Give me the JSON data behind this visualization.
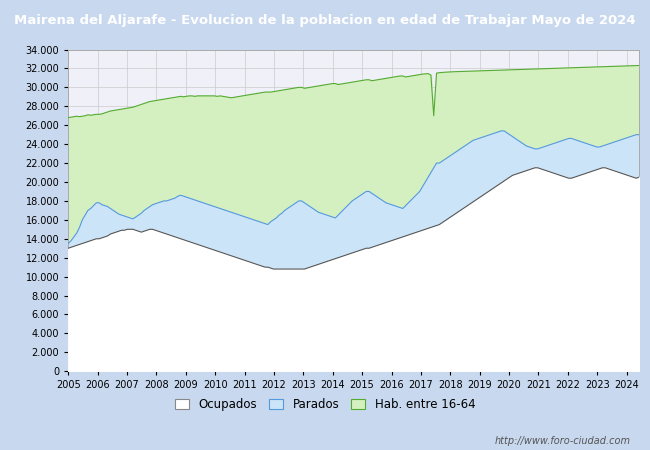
{
  "title": "Mairena del Aljarafe - Evolucion de la poblacion en edad de Trabajar Mayo de 2024",
  "title_bg": "#4080cc",
  "title_color": "#ffffff",
  "ylim": [
    0,
    34000
  ],
  "yticks": [
    0,
    2000,
    4000,
    6000,
    8000,
    10000,
    12000,
    14000,
    16000,
    18000,
    20000,
    22000,
    24000,
    26000,
    28000,
    30000,
    32000,
    34000
  ],
  "year_start": 2005.0,
  "year_end": 2024.42,
  "xtick_years": [
    2005,
    2006,
    2007,
    2008,
    2009,
    2010,
    2011,
    2012,
    2013,
    2014,
    2015,
    2016,
    2017,
    2018,
    2019,
    2020,
    2021,
    2022,
    2023,
    2024
  ],
  "hab_16_64": [
    26800,
    26850,
    26900,
    26950,
    26900,
    26950,
    27000,
    27100,
    27050,
    27100,
    27150,
    27150,
    27200,
    27300,
    27400,
    27500,
    27550,
    27600,
    27650,
    27700,
    27750,
    27800,
    27850,
    27900,
    28000,
    28100,
    28200,
    28300,
    28400,
    28500,
    28550,
    28600,
    28650,
    28700,
    28750,
    28800,
    28850,
    28900,
    28950,
    29000,
    29050,
    29000,
    29050,
    29100,
    29100,
    29050,
    29100,
    29100,
    29100,
    29100,
    29100,
    29100,
    29100,
    29050,
    29100,
    29050,
    29000,
    28950,
    28900,
    28950,
    29000,
    29050,
    29100,
    29150,
    29200,
    29250,
    29300,
    29350,
    29400,
    29450,
    29500,
    29500,
    29500,
    29550,
    29600,
    29650,
    29700,
    29750,
    29800,
    29850,
    29900,
    29950,
    30000,
    30000,
    29900,
    29950,
    30000,
    30050,
    30100,
    30150,
    30200,
    30250,
    30300,
    30350,
    30400,
    30400,
    30300,
    30350,
    30400,
    30450,
    30500,
    30550,
    30600,
    30650,
    30700,
    30750,
    30800,
    30800,
    30700,
    30750,
    30800,
    30850,
    30900,
    30950,
    31000,
    31050,
    31100,
    31150,
    31200,
    31200,
    31100,
    31150,
    31200,
    31250,
    31300,
    31350,
    31400,
    31430,
    31450,
    31300,
    27000,
    31500,
    31550,
    31580,
    31600,
    31620,
    31640,
    31650,
    31660,
    31670,
    31680,
    31690,
    31700,
    31710,
    31720,
    31730,
    31740,
    31750,
    31760,
    31770,
    31780,
    31790,
    31800,
    31810,
    31820,
    31830,
    31840,
    31850,
    31860,
    31870,
    31880,
    31890,
    31900,
    31910,
    31920,
    31930,
    31940,
    31950,
    31960,
    31970,
    31980,
    31990,
    32000,
    32010,
    32020,
    32030,
    32040,
    32050,
    32060,
    32070,
    32080,
    32090,
    32100,
    32110,
    32120,
    32130,
    32140,
    32150,
    32160,
    32170,
    32180,
    32190,
    32200,
    32210,
    32220,
    32230,
    32240,
    32250,
    32260,
    32270,
    32280,
    32290,
    32300,
    32310
  ],
  "parados": [
    13500,
    13800,
    14200,
    14600,
    15200,
    16000,
    16500,
    17000,
    17200,
    17500,
    17800,
    17800,
    17600,
    17500,
    17400,
    17200,
    17000,
    16800,
    16600,
    16500,
    16400,
    16300,
    16200,
    16100,
    16300,
    16500,
    16700,
    17000,
    17200,
    17400,
    17600,
    17700,
    17800,
    17900,
    18000,
    18000,
    18100,
    18200,
    18300,
    18500,
    18600,
    18500,
    18400,
    18300,
    18200,
    18100,
    18000,
    17900,
    17800,
    17700,
    17600,
    17500,
    17400,
    17300,
    17200,
    17100,
    17000,
    16900,
    16800,
    16700,
    16600,
    16500,
    16400,
    16300,
    16200,
    16100,
    16000,
    15900,
    15800,
    15700,
    15600,
    15500,
    15800,
    16000,
    16200,
    16500,
    16700,
    17000,
    17200,
    17400,
    17600,
    17800,
    18000,
    18000,
    17800,
    17600,
    17400,
    17200,
    17000,
    16800,
    16700,
    16600,
    16500,
    16400,
    16300,
    16200,
    16500,
    16800,
    17100,
    17400,
    17700,
    18000,
    18200,
    18400,
    18600,
    18800,
    19000,
    19000,
    18800,
    18600,
    18400,
    18200,
    18000,
    17800,
    17700,
    17600,
    17500,
    17400,
    17300,
    17200,
    17500,
    17800,
    18100,
    18400,
    18700,
    19000,
    19500,
    20000,
    20500,
    21000,
    21500,
    22000,
    22000,
    22200,
    22400,
    22600,
    22800,
    23000,
    23200,
    23400,
    23600,
    23800,
    24000,
    24200,
    24400,
    24500,
    24600,
    24700,
    24800,
    24900,
    25000,
    25100,
    25200,
    25300,
    25400,
    25400,
    25200,
    25000,
    24800,
    24600,
    24400,
    24200,
    24000,
    23800,
    23700,
    23600,
    23500,
    23500,
    23600,
    23700,
    23800,
    23900,
    24000,
    24100,
    24200,
    24300,
    24400,
    24500,
    24600,
    24600,
    24500,
    24400,
    24300,
    24200,
    24100,
    24000,
    23900,
    23800,
    23700,
    23700,
    23800,
    23900,
    24000,
    24100,
    24200,
    24300,
    24400,
    24500,
    24600,
    24700,
    24800,
    24900,
    25000,
    25000
  ],
  "ocupados": [
    13000,
    13100,
    13200,
    13300,
    13400,
    13500,
    13600,
    13700,
    13800,
    13900,
    14000,
    14000,
    14100,
    14200,
    14300,
    14500,
    14600,
    14700,
    14800,
    14900,
    14900,
    15000,
    15000,
    15000,
    14900,
    14800,
    14700,
    14800,
    14900,
    15000,
    15000,
    14900,
    14800,
    14700,
    14600,
    14500,
    14400,
    14300,
    14200,
    14100,
    14000,
    13900,
    13800,
    13700,
    13600,
    13500,
    13400,
    13300,
    13200,
    13100,
    13000,
    12900,
    12800,
    12700,
    12600,
    12500,
    12400,
    12300,
    12200,
    12100,
    12000,
    11900,
    11800,
    11700,
    11600,
    11500,
    11400,
    11300,
    11200,
    11100,
    11000,
    11000,
    10900,
    10800,
    10800,
    10800,
    10800,
    10800,
    10800,
    10800,
    10800,
    10800,
    10800,
    10800,
    10800,
    10900,
    11000,
    11100,
    11200,
    11300,
    11400,
    11500,
    11600,
    11700,
    11800,
    11900,
    12000,
    12100,
    12200,
    12300,
    12400,
    12500,
    12600,
    12700,
    12800,
    12900,
    13000,
    13000,
    13100,
    13200,
    13300,
    13400,
    13500,
    13600,
    13700,
    13800,
    13900,
    14000,
    14100,
    14200,
    14300,
    14400,
    14500,
    14600,
    14700,
    14800,
    14900,
    15000,
    15100,
    15200,
    15300,
    15400,
    15500,
    15700,
    15900,
    16100,
    16300,
    16500,
    16700,
    16900,
    17100,
    17300,
    17500,
    17700,
    17900,
    18100,
    18300,
    18500,
    18700,
    18900,
    19100,
    19300,
    19500,
    19700,
    19900,
    20100,
    20300,
    20500,
    20700,
    20800,
    20900,
    21000,
    21100,
    21200,
    21300,
    21400,
    21500,
    21500,
    21400,
    21300,
    21200,
    21100,
    21000,
    20900,
    20800,
    20700,
    20600,
    20500,
    20400,
    20400,
    20500,
    20600,
    20700,
    20800,
    20900,
    21000,
    21100,
    21200,
    21300,
    21400,
    21500,
    21500,
    21400,
    21300,
    21200,
    21100,
    21000,
    20900,
    20800,
    20700,
    20600,
    20500,
    20400,
    20500
  ],
  "color_hab": "#d4f0c0",
  "color_parados": "#cce4f7",
  "color_hab_line": "#55aa33",
  "color_parados_line": "#5599dd",
  "color_ocupados_line": "#555555",
  "legend_labels": [
    "Ocupados",
    "Parados",
    "Hab. entre 16-64"
  ],
  "legend_colors": [
    "#ffffff",
    "#cce4f7",
    "#d4f0c0"
  ],
  "legend_edge_colors": [
    "#888888",
    "#5599dd",
    "#55aa33"
  ],
  "watermark": "http://www.foro-ciudad.com",
  "grid_color": "#cccccc",
  "fig_bg": "#c8d8ee",
  "plot_bg": "#f0f0f8",
  "title_fontsize": 9.5
}
